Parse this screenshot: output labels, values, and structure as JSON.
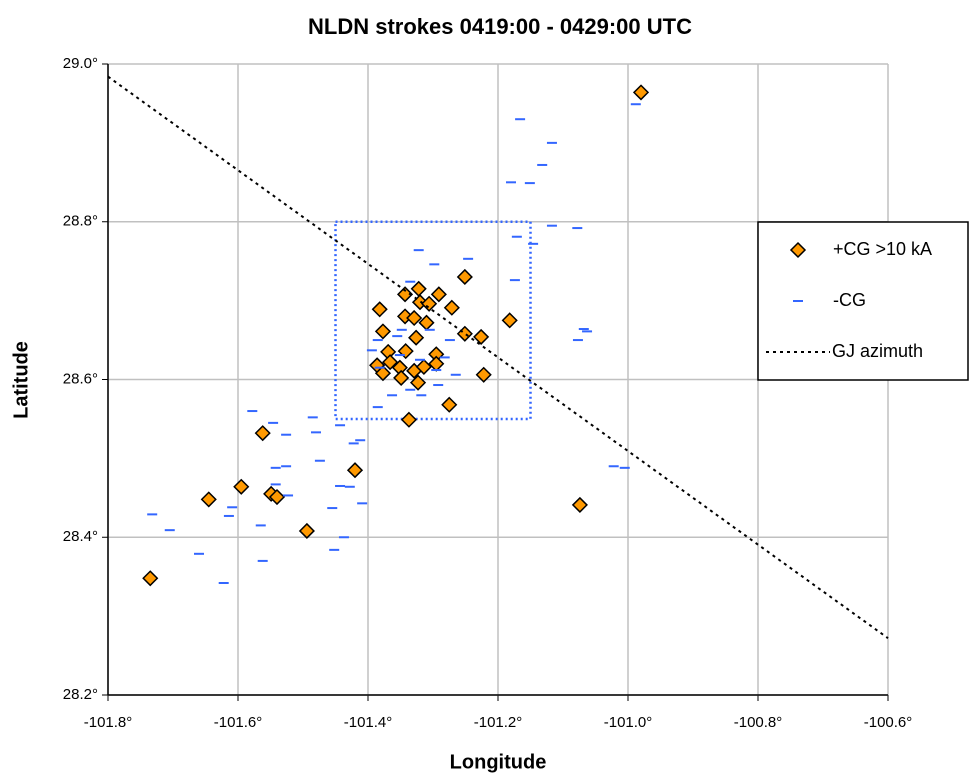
{
  "chart_data": {
    "type": "scatter",
    "title": "NLDN strokes 0419:00 - 0429:00 UTC",
    "x_label": "Longitude",
    "y_label": "Latitude",
    "xlim": [
      -101.8,
      -100.6
    ],
    "xticks": [
      {
        "value": -101.8,
        "label": "-101.8°"
      },
      {
        "value": -101.6,
        "label": "-101.6°"
      },
      {
        "value": -101.4,
        "label": "-101.4°"
      },
      {
        "value": -101.2,
        "label": "-101.2°"
      },
      {
        "value": -101.0,
        "label": "-101.0°"
      },
      {
        "value": -100.8,
        "label": "-100.8°"
      },
      {
        "value": -100.6,
        "label": "-100.6°"
      }
    ],
    "ylim": [
      28.2,
      29.0
    ],
    "yticks": [
      {
        "value": 28.2,
        "label": "28.2°"
      },
      {
        "value": 28.4,
        "label": "28.4°"
      },
      {
        "value": 28.6,
        "label": "28.6°"
      },
      {
        "value": 28.8,
        "label": "28.8°"
      },
      {
        "value": 29.0,
        "label": "29.0°"
      }
    ],
    "grid": true,
    "legend": "right",
    "region": {
      "x": [
        -101.45,
        -101.15
      ],
      "y": [
        28.55,
        28.8
      ],
      "color": "#3366ff"
    },
    "series": [
      {
        "name": "+CG >10 kA",
        "marker": "diamond",
        "color": "#ff9900",
        "x": [
          -100.98,
          -101.735,
          -101.645,
          -101.595,
          -101.562,
          -101.549,
          -101.54,
          -101.494,
          -101.42,
          -101.074,
          -101.382,
          -101.377,
          -101.343,
          -101.322,
          -101.32,
          -101.306,
          -101.291,
          -101.251,
          -101.271,
          -101.343,
          -101.329,
          -101.31,
          -101.326,
          -101.251,
          -101.226,
          -101.182,
          -101.369,
          -101.342,
          -101.295,
          -101.386,
          -101.366,
          -101.377,
          -101.351,
          -101.349,
          -101.329,
          -101.314,
          -101.295,
          -101.323,
          -101.222,
          -101.275,
          -101.337
        ],
        "y": [
          28.964,
          28.348,
          28.448,
          28.464,
          28.532,
          28.455,
          28.451,
          28.408,
          28.485,
          28.441,
          28.689,
          28.661,
          28.708,
          28.715,
          28.698,
          28.696,
          28.708,
          28.73,
          28.691,
          28.68,
          28.678,
          28.672,
          28.653,
          28.658,
          28.654,
          28.675,
          28.635,
          28.636,
          28.632,
          28.618,
          28.622,
          28.608,
          28.615,
          28.602,
          28.611,
          28.616,
          28.62,
          28.596,
          28.606,
          28.568,
          28.549
        ]
      },
      {
        "name": "-CG",
        "marker": "dash",
        "color": "#3366ff",
        "x": [
          -100.988,
          -101.166,
          -101.117,
          -101.132,
          -101.18,
          -101.151,
          -101.117,
          -101.078,
          -101.171,
          -101.146,
          -101.322,
          -101.246,
          -101.298,
          -101.174,
          -101.335,
          -101.068,
          -101.063,
          -101.077,
          -101.348,
          -101.385,
          -101.355,
          -101.305,
          -101.274,
          -101.394,
          -101.351,
          -101.282,
          -101.32,
          -101.382,
          -101.295,
          -101.265,
          -101.335,
          -101.385,
          -101.292,
          -101.363,
          -101.318,
          -101.578,
          -101.546,
          -101.485,
          -101.526,
          -101.443,
          -101.422,
          -101.48,
          -101.542,
          -101.474,
          -101.542,
          -101.523,
          -101.443,
          -101.428,
          -101.409,
          -101.455,
          -101.609,
          -101.614,
          -101.565,
          -101.437,
          -101.452,
          -101.562,
          -101.66,
          -101.732,
          -101.705,
          -101.622,
          -101.022,
          -101.005,
          -101.412,
          -101.526
        ],
        "y": [
          28.949,
          28.93,
          28.9,
          28.872,
          28.85,
          28.849,
          28.795,
          28.792,
          28.781,
          28.772,
          28.764,
          28.753,
          28.746,
          28.726,
          28.724,
          28.664,
          28.661,
          28.65,
          28.663,
          28.65,
          28.655,
          28.663,
          28.65,
          28.637,
          28.631,
          28.628,
          28.625,
          28.615,
          28.612,
          28.606,
          28.587,
          28.565,
          28.593,
          28.58,
          28.58,
          28.56,
          28.545,
          28.552,
          28.53,
          28.542,
          28.519,
          28.533,
          28.488,
          28.497,
          28.467,
          28.453,
          28.465,
          28.464,
          28.443,
          28.437,
          28.438,
          28.427,
          28.415,
          28.4,
          28.384,
          28.37,
          28.379,
          28.429,
          28.409,
          28.342,
          28.49,
          28.488,
          28.523,
          28.49
        ]
      },
      {
        "name": "GJ azimuth",
        "marker": "dotted-line",
        "color": "#000000",
        "x": [
          -101.8,
          -100.6
        ],
        "y": [
          28.984,
          28.272
        ]
      }
    ]
  }
}
